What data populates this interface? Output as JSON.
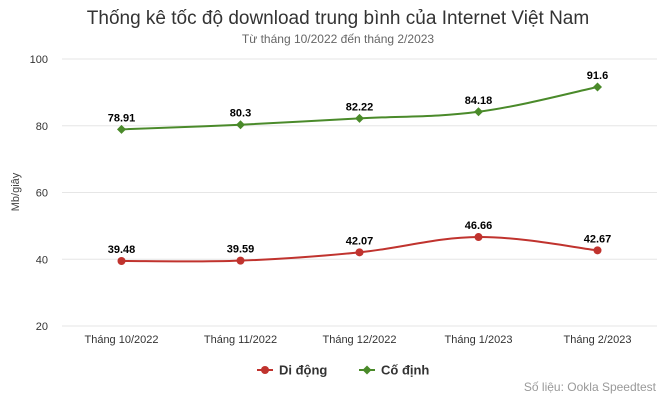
{
  "chart_data": {
    "type": "line",
    "title": "Thống kê tốc độ download trung bình của Internet Việt Nam",
    "subtitle": "Từ tháng 10/2022 đến tháng 2/2023",
    "ylabel": "Mb/giây",
    "xlabel": "",
    "categories": [
      "Tháng 10/2022",
      "Tháng 11/2022",
      "Tháng 12/2022",
      "Tháng 1/2023",
      "Tháng 2/2023"
    ],
    "ylim": [
      20,
      100
    ],
    "yticks": [
      20,
      40,
      60,
      80,
      100
    ],
    "grid": true,
    "legend_position": "bottom-center",
    "series": [
      {
        "name": "Di động",
        "color": "#c0332e",
        "marker": "circle",
        "values": [
          39.48,
          39.59,
          42.07,
          46.66,
          42.67
        ]
      },
      {
        "name": "Cố định",
        "color": "#4a8a2a",
        "marker": "diamond",
        "values": [
          78.91,
          80.3,
          82.22,
          84.18,
          91.6
        ]
      }
    ],
    "credit": "Số liệu: Ookla Speedtest"
  }
}
